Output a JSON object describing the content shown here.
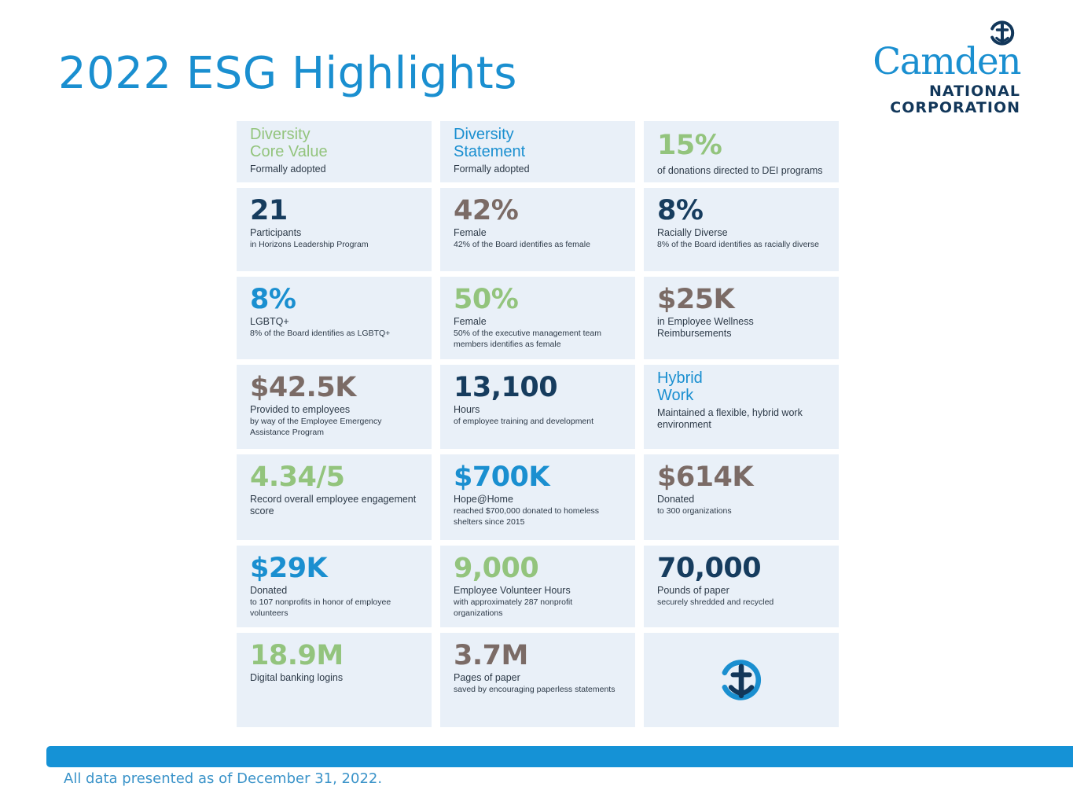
{
  "page": {
    "title": "2022 ESG Highlights",
    "footer_note": "All data presented as of December 31, 2022."
  },
  "logo": {
    "word": "Camden",
    "line2": "NATIONAL",
    "line3": "CORPORATION",
    "icon": "anchor-icon",
    "colors": {
      "word": "#1a8fd0",
      "subline": "#12375a"
    }
  },
  "colors": {
    "green": "#93c47d",
    "navy": "#163c5e",
    "taupe": "#7b6b66",
    "blue": "#1a8fd0",
    "tile_bg": "#e9f0f8",
    "footer_bar": "#1592d6"
  },
  "tiles": [
    {
      "head": [
        "Diversity",
        "Core Value"
      ],
      "label": "Formally adopted",
      "sub": "",
      "color": "#93c47d"
    },
    {
      "head": [
        "Diversity",
        "Statement"
      ],
      "label": "Formally adopted",
      "sub": "",
      "color": "#1a8fd0"
    },
    {
      "value": "15%",
      "label": "of donations directed to DEI programs",
      "sub": "",
      "color": "#93c47d"
    },
    {
      "value": "21",
      "label": "Participants",
      "sub": "in Horizons Leadership Program",
      "color": "#163c5e"
    },
    {
      "value": "42%",
      "label": "Female",
      "sub": "42% of the Board identifies as female",
      "color": "#7b6b66"
    },
    {
      "value": "8%",
      "label": "Racially Diverse",
      "sub": "8% of the Board identifies as racially diverse",
      "color": "#163c5e"
    },
    {
      "value": "8%",
      "label": "LGBTQ+",
      "sub": "8% of the Board identifies as LGBTQ+",
      "color": "#1a8fd0"
    },
    {
      "value": "50%",
      "label": "Female",
      "sub": "50% of the executive management team members identifies as female",
      "color": "#93c47d"
    },
    {
      "value": "$25K",
      "label": "in Employee Wellness Reimbursements",
      "sub": "",
      "color": "#7b6b66"
    },
    {
      "value": "$42.5K",
      "label": "Provided to employees",
      "sub": "by way of the Employee Emergency Assistance Program",
      "color": "#7b6b66"
    },
    {
      "value": "13,100",
      "label": "Hours",
      "sub": "of employee training and development",
      "color": "#163c5e"
    },
    {
      "head": [
        "Hybrid",
        "Work"
      ],
      "label": "Maintained a flexible, hybrid work environment",
      "sub": "",
      "color": "#1a8fd0"
    },
    {
      "value": "4.34/5",
      "label": "Record overall employee engagement score",
      "sub": "",
      "color": "#93c47d"
    },
    {
      "value": "$700K",
      "label": "Hope@Home",
      "sub": "reached $700,000 donated to homeless shelters since 2015",
      "color": "#1a8fd0"
    },
    {
      "value": "$614K",
      "label": "Donated",
      "sub": "to 300 organizations",
      "color": "#7b6b66"
    },
    {
      "value": "$29K",
      "label": "Donated",
      "sub": "to 107 nonprofits in honor of employee volunteers",
      "color": "#1a8fd0"
    },
    {
      "value": "9,000",
      "label": "Employee Volunteer Hours",
      "sub": "with approximately 287 nonprofit organizations",
      "color": "#93c47d"
    },
    {
      "value": "70,000",
      "label": "Pounds of paper",
      "sub": "securely shredded and recycled",
      "color": "#163c5e"
    },
    {
      "value": "18.9M",
      "label": "Digital banking logins",
      "sub": "",
      "color": "#93c47d"
    },
    {
      "value": "3.7M",
      "label": "Pages of paper",
      "sub": "saved by encouraging paperless statements",
      "color": "#7b6b66"
    },
    {
      "icon": "anchor-icon"
    }
  ]
}
